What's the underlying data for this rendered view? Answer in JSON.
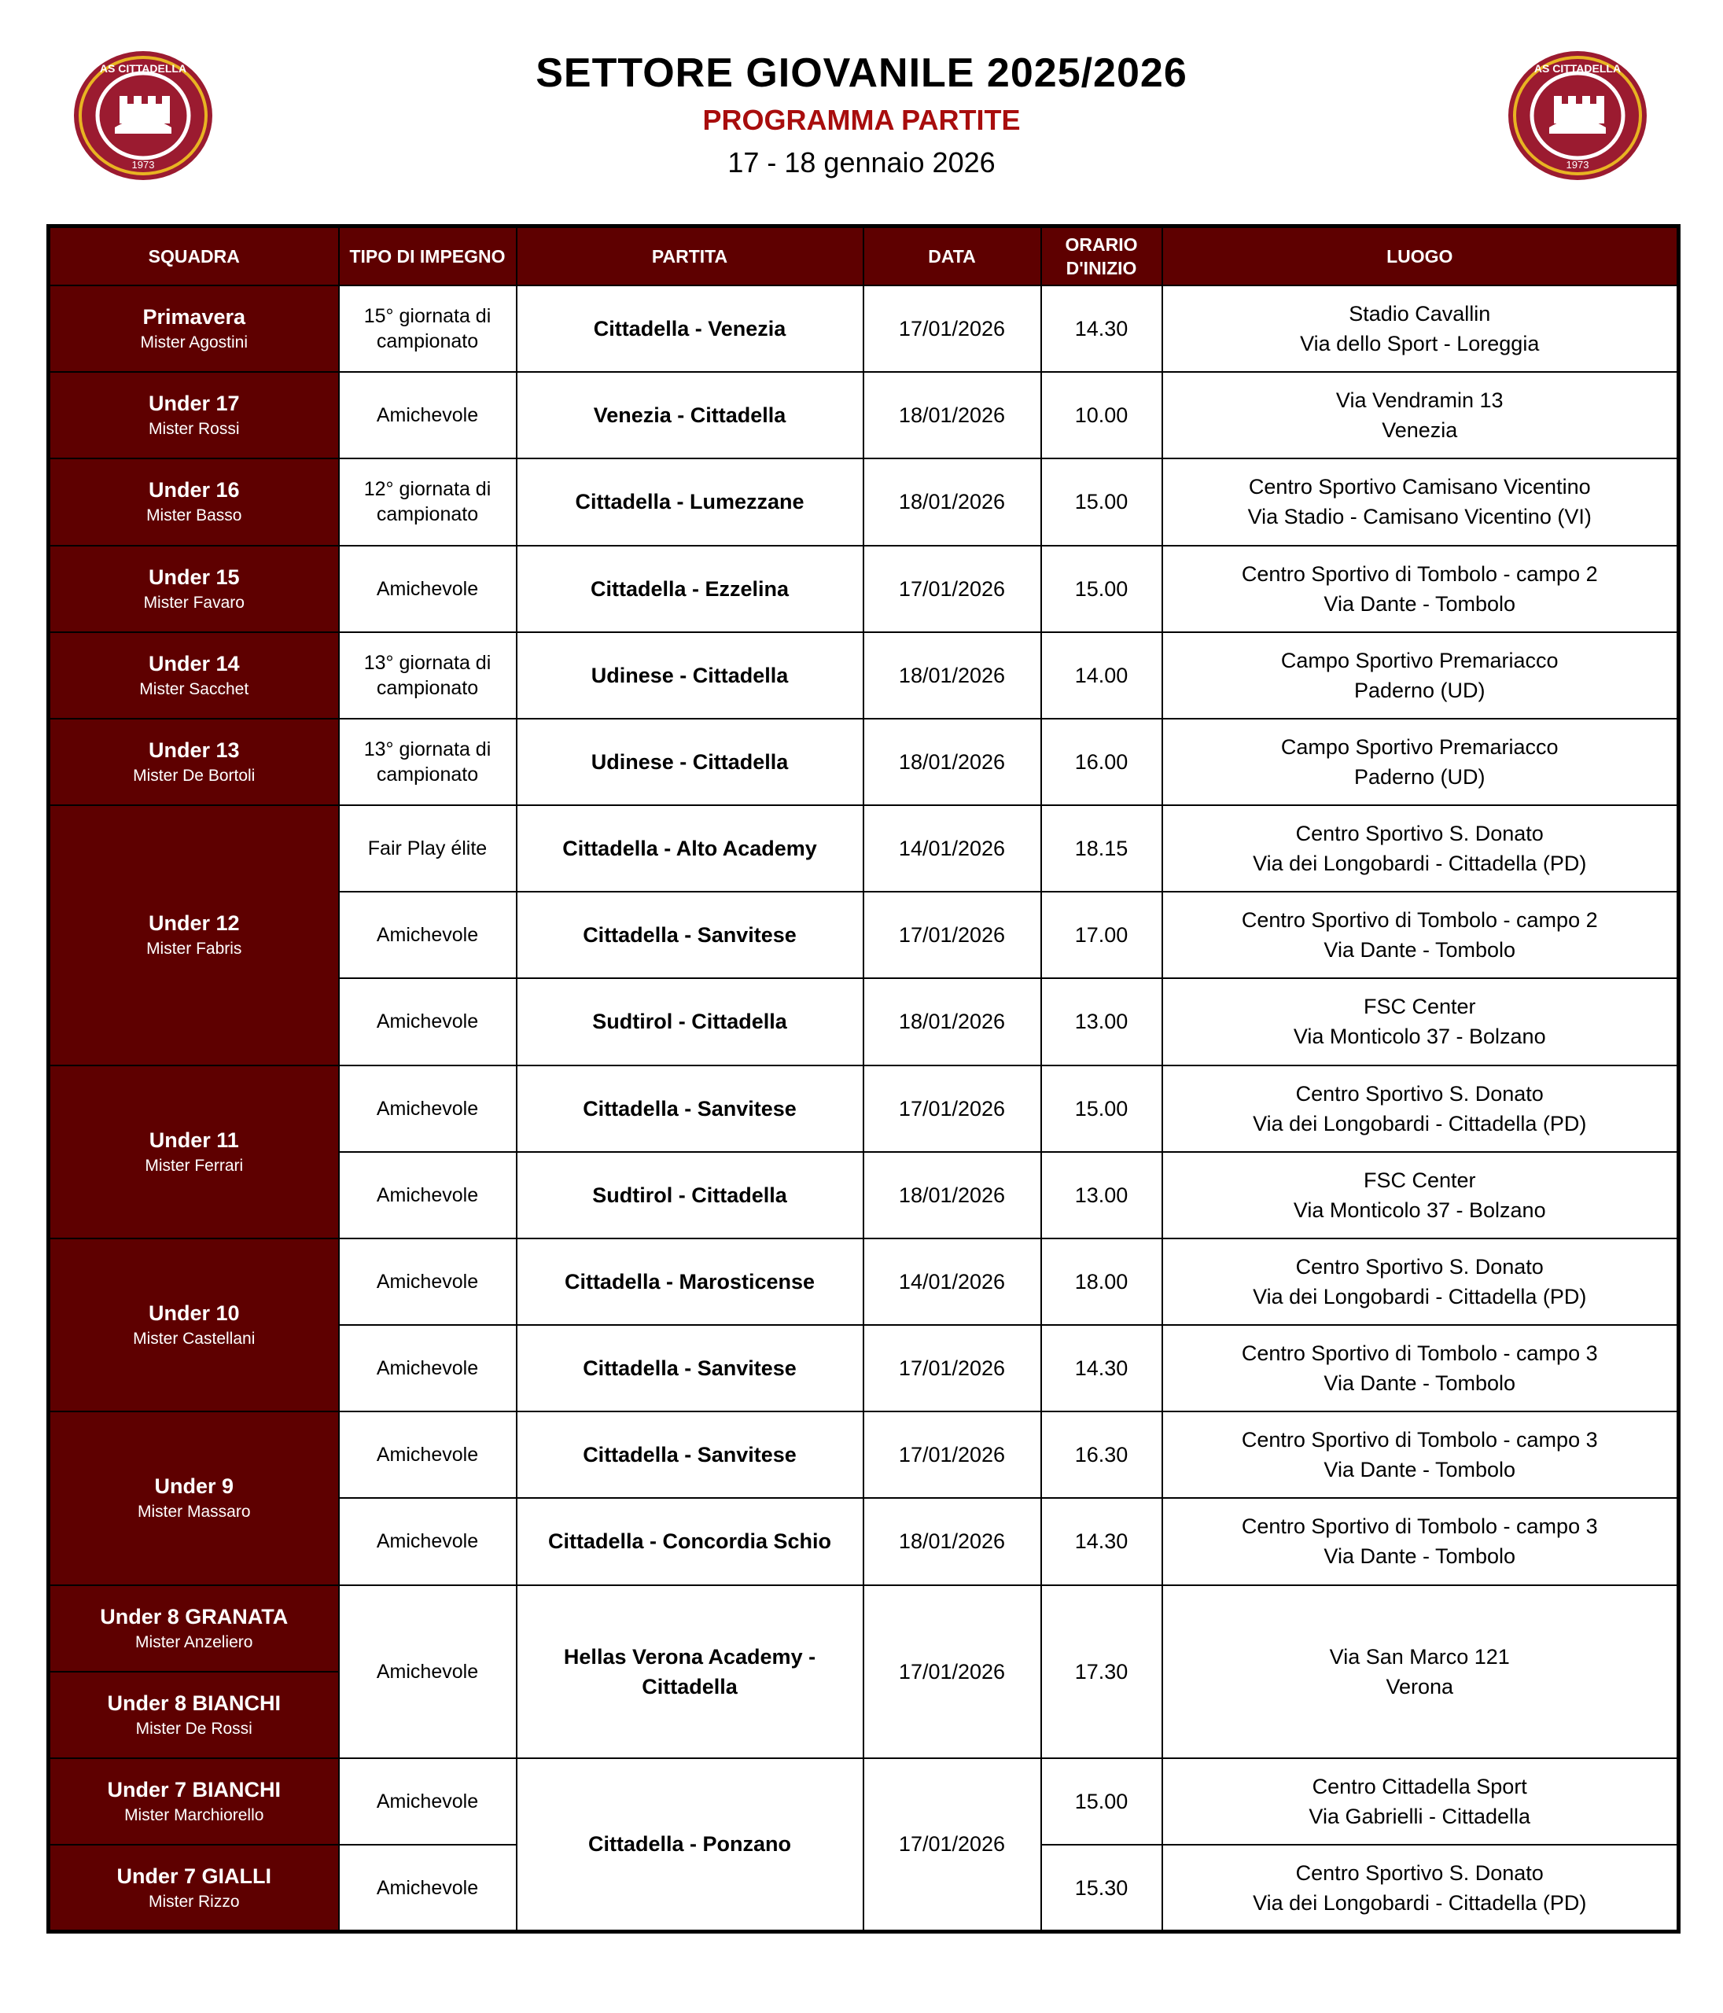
{
  "header": {
    "title": "SETTORE GIOVANILE 2025/2026",
    "subtitle": "PROGRAMMA PARTITE",
    "dates": "17 - 18 gennaio 2026"
  },
  "logo": {
    "text": "AS CITTADELLA",
    "year": "1973",
    "colors": {
      "red": "#9b1b30",
      "gold": "#e8b422",
      "white": "#ffffff"
    }
  },
  "colors": {
    "header_bg": "#5e0000",
    "subtitle": "#a80d0d"
  },
  "columns": [
    {
      "lines": [
        "SQUADRA"
      ]
    },
    {
      "lines": [
        "TIPO DI IMPEGNO"
      ]
    },
    {
      "lines": [
        "PARTITA"
      ]
    },
    {
      "lines": [
        "DATA"
      ]
    },
    {
      "lines": [
        "ORARIO",
        "D'INIZIO"
      ]
    },
    {
      "lines": [
        "LUOGO"
      ]
    }
  ],
  "rows": [
    {
      "squadra": {
        "name": "Primavera",
        "mister": "Mister Agostini"
      },
      "tipo": {
        "text": "15° giornata di campionato"
      },
      "partita": {
        "text": "Cittadella - Venezia"
      },
      "data": {
        "text": "17/01/2026"
      },
      "orario": {
        "text": "14.30"
      },
      "luogo": {
        "lines": [
          "Stadio Cavallin",
          "Via dello Sport - Loreggia"
        ]
      }
    },
    {
      "squadra": {
        "name": "Under 17",
        "mister": "Mister Rossi"
      },
      "tipo": {
        "text": "Amichevole"
      },
      "partita": {
        "text": "Venezia - Cittadella"
      },
      "data": {
        "text": "18/01/2026"
      },
      "orario": {
        "text": "10.00"
      },
      "luogo": {
        "lines": [
          "Via Vendramin 13",
          "Venezia"
        ]
      }
    },
    {
      "squadra": {
        "name": "Under 16",
        "mister": "Mister Basso"
      },
      "tipo": {
        "text": "12° giornata di campionato"
      },
      "partita": {
        "text": "Cittadella - Lumezzane"
      },
      "data": {
        "text": "18/01/2026"
      },
      "orario": {
        "text": "15.00"
      },
      "luogo": {
        "lines": [
          "Centro Sportivo Camisano Vicentino",
          "Via Stadio - Camisano Vicentino (VI)"
        ]
      }
    },
    {
      "squadra": {
        "name": "Under 15",
        "mister": "Mister Favaro"
      },
      "tipo": {
        "text": "Amichevole"
      },
      "partita": {
        "text": "Cittadella - Ezzelina"
      },
      "data": {
        "text": "17/01/2026"
      },
      "orario": {
        "text": "15.00"
      },
      "luogo": {
        "lines": [
          "Centro Sportivo di Tombolo - campo 2",
          "Via Dante - Tombolo"
        ]
      }
    },
    {
      "squadra": {
        "name": "Under 14",
        "mister": "Mister Sacchet"
      },
      "tipo": {
        "text": "13° giornata di campionato"
      },
      "partita": {
        "text": "Udinese - Cittadella"
      },
      "data": {
        "text": "18/01/2026"
      },
      "orario": {
        "text": "14.00"
      },
      "luogo": {
        "lines": [
          "Campo Sportivo Premariacco",
          "Paderno (UD)"
        ]
      }
    },
    {
      "squadra": {
        "name": "Under 13",
        "mister": "Mister De Bortoli"
      },
      "tipo": {
        "text": "13° giornata di campionato"
      },
      "partita": {
        "text": "Udinese - Cittadella"
      },
      "data": {
        "text": "18/01/2026"
      },
      "orario": {
        "text": "16.00"
      },
      "luogo": {
        "lines": [
          "Campo Sportivo Premariacco",
          "Paderno (UD)"
        ]
      }
    },
    {
      "squadra": {
        "name": "Under 12",
        "mister": "Mister Fabris",
        "span": 3
      },
      "tipo": {
        "text": "Fair Play élite"
      },
      "partita": {
        "text": "Cittadella - Alto Academy"
      },
      "data": {
        "text": "14/01/2026"
      },
      "orario": {
        "text": "18.15"
      },
      "luogo": {
        "lines": [
          "Centro Sportivo S. Donato",
          "Via dei Longobardi - Cittadella (PD)"
        ]
      }
    },
    {
      "tipo": {
        "text": "Amichevole"
      },
      "partita": {
        "text": "Cittadella - Sanvitese"
      },
      "data": {
        "text": "17/01/2026"
      },
      "orario": {
        "text": "17.00"
      },
      "luogo": {
        "lines": [
          "Centro Sportivo di Tombolo - campo 2",
          "Via Dante - Tombolo"
        ]
      }
    },
    {
      "tipo": {
        "text": "Amichevole"
      },
      "partita": {
        "text": "Sudtirol - Cittadella"
      },
      "data": {
        "text": "18/01/2026"
      },
      "orario": {
        "text": "13.00"
      },
      "luogo": {
        "lines": [
          "FSC Center",
          "Via Monticolo 37 - Bolzano"
        ]
      }
    },
    {
      "squadra": {
        "name": "Under 11",
        "mister": "Mister Ferrari",
        "span": 2
      },
      "tipo": {
        "text": "Amichevole"
      },
      "partita": {
        "text": "Cittadella - Sanvitese"
      },
      "data": {
        "text": "17/01/2026"
      },
      "orario": {
        "text": "15.00"
      },
      "luogo": {
        "lines": [
          "Centro Sportivo S. Donato",
          "Via dei Longobardi - Cittadella (PD)"
        ]
      }
    },
    {
      "tipo": {
        "text": "Amichevole"
      },
      "partita": {
        "text": "Sudtirol - Cittadella"
      },
      "data": {
        "text": "18/01/2026"
      },
      "orario": {
        "text": "13.00"
      },
      "luogo": {
        "lines": [
          "FSC Center",
          "Via Monticolo 37 - Bolzano"
        ]
      }
    },
    {
      "squadra": {
        "name": "Under 10",
        "mister": "Mister Castellani",
        "span": 2
      },
      "tipo": {
        "text": "Amichevole"
      },
      "partita": {
        "text": "Cittadella - Marosticense"
      },
      "data": {
        "text": "14/01/2026"
      },
      "orario": {
        "text": "18.00"
      },
      "luogo": {
        "lines": [
          "Centro Sportivo S. Donato",
          "Via dei Longobardi - Cittadella (PD)"
        ]
      }
    },
    {
      "tipo": {
        "text": "Amichevole"
      },
      "partita": {
        "text": "Cittadella - Sanvitese"
      },
      "data": {
        "text": "17/01/2026"
      },
      "orario": {
        "text": "14.30"
      },
      "luogo": {
        "lines": [
          "Centro Sportivo di Tombolo - campo 3",
          "Via Dante - Tombolo"
        ]
      }
    },
    {
      "squadra": {
        "name": "Under 9",
        "mister": "Mister Massaro",
        "span": 2
      },
      "tipo": {
        "text": "Amichevole"
      },
      "partita": {
        "text": "Cittadella - Sanvitese"
      },
      "data": {
        "text": "17/01/2026"
      },
      "orario": {
        "text": "16.30"
      },
      "luogo": {
        "lines": [
          "Centro Sportivo di Tombolo - campo 3",
          "Via Dante - Tombolo"
        ]
      }
    },
    {
      "tipo": {
        "text": "Amichevole"
      },
      "partita": {
        "text": "Cittadella - Concordia Schio"
      },
      "data": {
        "text": "18/01/2026"
      },
      "orario": {
        "text": "14.30"
      },
      "luogo": {
        "lines": [
          "Centro Sportivo di Tombolo - campo 3",
          "Via Dante - Tombolo"
        ]
      }
    },
    {
      "squadra": {
        "name": "Under 8 GRANATA",
        "mister": "Mister Anzeliero"
      },
      "tipo": {
        "text": "Amichevole",
        "span": 2
      },
      "partita": {
        "text": "Hellas Verona Academy  - Cittadella",
        "span": 2
      },
      "data": {
        "text": "17/01/2026",
        "span": 2
      },
      "orario": {
        "text": "17.30",
        "span": 2
      },
      "luogo": {
        "lines": [
          "Via San Marco 121",
          "Verona"
        ],
        "span": 2
      }
    },
    {
      "squadra": {
        "name": "Under 8 BIANCHI",
        "mister": "Mister De Rossi"
      }
    },
    {
      "squadra": {
        "name": "Under 7 BIANCHI",
        "mister": "Mister Marchiorello"
      },
      "tipo": {
        "text": "Amichevole"
      },
      "partita": {
        "text": "Cittadella - Ponzano",
        "span": 2
      },
      "data": {
        "text": "17/01/2026",
        "span": 2
      },
      "orario": {
        "text": "15.00"
      },
      "luogo": {
        "lines": [
          "Centro Cittadella Sport",
          "Via Gabrielli - Cittadella"
        ]
      }
    },
    {
      "squadra": {
        "name": "Under 7 GIALLI",
        "mister": "Mister Rizzo"
      },
      "tipo": {
        "text": "Amichevole"
      },
      "orario": {
        "text": "15.30"
      },
      "luogo": {
        "lines": [
          "Centro Sportivo S. Donato",
          "Via dei Longobardi - Cittadella (PD)"
        ]
      }
    }
  ]
}
